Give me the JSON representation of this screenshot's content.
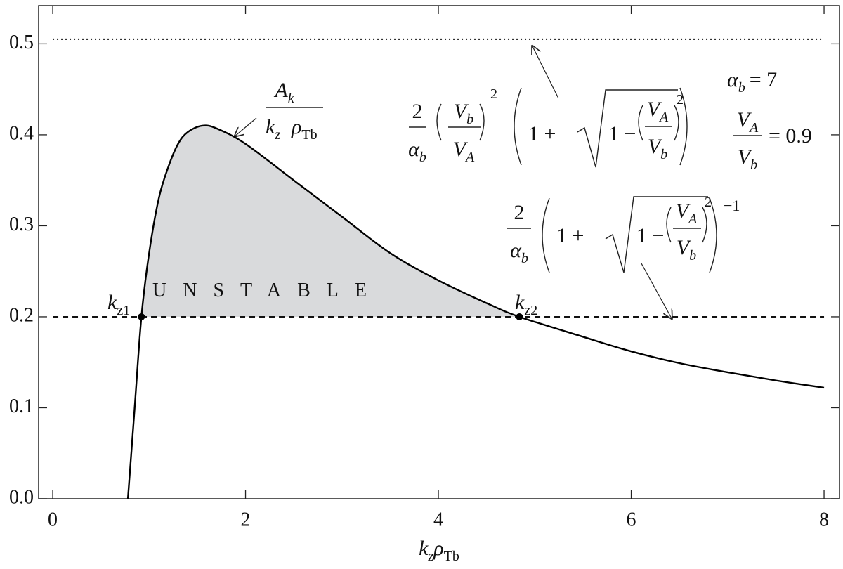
{
  "chart_data": {
    "type": "line",
    "x": [
      0.78,
      0.85,
      0.92,
      1.0,
      1.1,
      1.2,
      1.3,
      1.4,
      1.55,
      1.7,
      2.0,
      2.5,
      3.0,
      3.5,
      4.0,
      4.5,
      4.84,
      5.5,
      6.0,
      6.5,
      7.0,
      7.5,
      8.0
    ],
    "series": [
      {
        "color": "#000000",
        "values": [
          0,
          0.1,
          0.2,
          0.27,
          0.33,
          0.365,
          0.39,
          0.403,
          0.41,
          0.407,
          0.39,
          0.35,
          0.31,
          0.27,
          0.24,
          0.215,
          0.2,
          0.178,
          0.162,
          0.149,
          0.139,
          0.13,
          0.122
        ]
      }
    ],
    "fill_color": "#d9dadc",
    "xlim": [
      -0.146,
      8.16
    ],
    "ylim": [
      0,
      0.542
    ],
    "xticks": [
      0,
      2,
      4,
      6,
      8
    ],
    "yticks": [
      {
        "value": 0,
        "label": "0.0"
      },
      0.1,
      0.2,
      0.3,
      0.4,
      0.5
    ],
    "x_label": [
      {
        "base": "k",
        "sub": "z"
      },
      {
        "base": "ρ",
        "sub": "Tb"
      }
    ],
    "reference_lines": [
      {
        "value": 0.2,
        "style": "dashed"
      },
      {
        "value": 0.505,
        "style": "dotted"
      }
    ],
    "points": [
      {
        "x": 0.92,
        "y": 0.2,
        "label": {
          "base": "k",
          "sub": "z1"
        }
      },
      {
        "x": 4.84,
        "y": 0.2,
        "label": {
          "base": "k",
          "sub": "z2"
        }
      }
    ],
    "region_label": "UNSTABLE",
    "curve_label": {
      "numerator": {
        "base": "A",
        "sub": "k"
      },
      "denominator": [
        {
          "base": "k",
          "sub": "z"
        },
        {
          "base": "ρ",
          "sub": "Tb"
        }
      ]
    },
    "upper_formula": {
      "coef_num": "2",
      "coef_den": {
        "base": "α",
        "sub": "b"
      },
      "ratio_num": {
        "base": "V",
        "sub": "b"
      },
      "ratio_den": {
        "base": "V",
        "sub": "A"
      },
      "ratio_exp": "2",
      "sum": "1 +",
      "root_left": "1 −",
      "inner_num": {
        "base": "V",
        "sub": "A"
      },
      "inner_den": {
        "base": "V",
        "sub": "b"
      },
      "inner_exp": "2"
    },
    "lower_formula": {
      "coef_num": "2",
      "coef_den": {
        "base": "α",
        "sub": "b"
      },
      "sum": "1 +",
      "root_left": "1 −",
      "inner_num": {
        "base": "V",
        "sub": "A"
      },
      "inner_den": {
        "base": "V",
        "sub": "b"
      },
      "inner_exp": "2",
      "outer_exp": "−1"
    },
    "params": {
      "alpha": {
        "base": "α",
        "sub": "b",
        "rest": "= 7"
      },
      "ratio": {
        "num": {
          "base": "V",
          "sub": "A"
        },
        "den": {
          "base": "V",
          "sub": "b"
        },
        "rest": "= 0.9"
      }
    }
  }
}
